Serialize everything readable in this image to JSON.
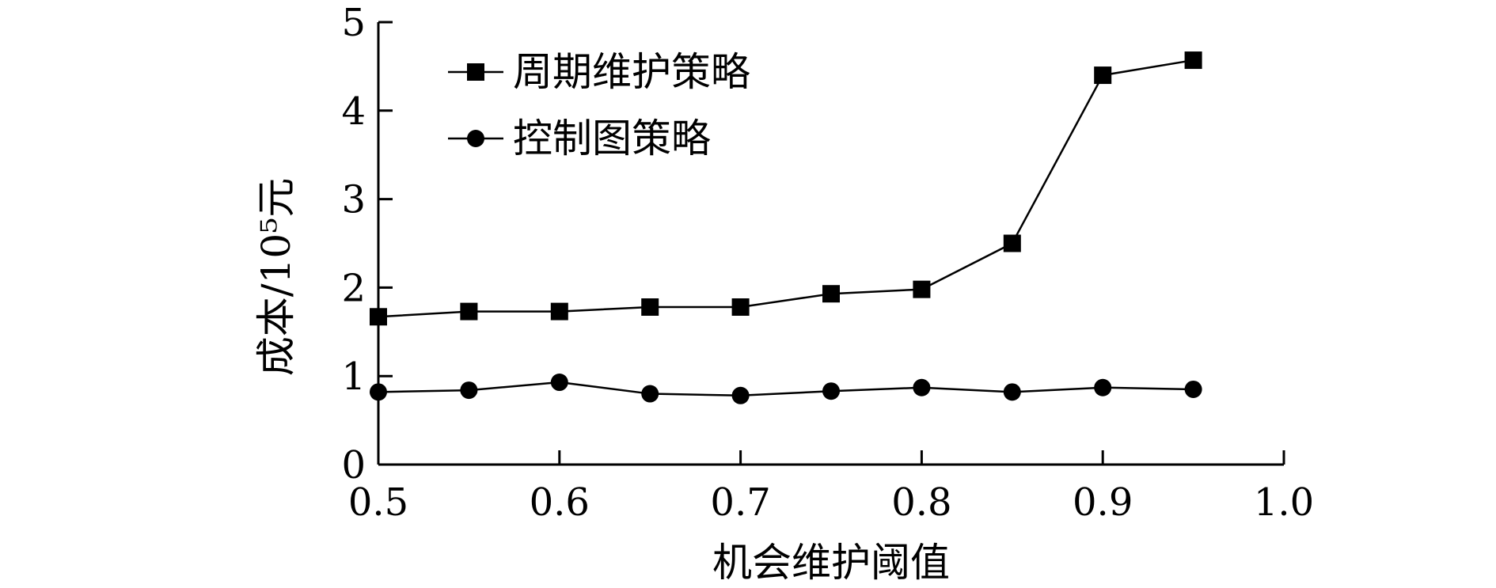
{
  "chart_data": {
    "type": "line",
    "xlabel": "机会维护阈值",
    "ylabel": "成本/10⁵元",
    "xlim": [
      0.5,
      1.0
    ],
    "ylim": [
      0,
      5
    ],
    "xticks": [
      "0.5",
      "0.6",
      "0.7",
      "0.8",
      "0.9",
      "1.0"
    ],
    "yticks": [
      "0",
      "1",
      "2",
      "3",
      "4",
      "5"
    ],
    "grid": false,
    "legend_position": "top-left",
    "x": [
      0.5,
      0.55,
      0.6,
      0.65,
      0.7,
      0.75,
      0.8,
      0.85,
      0.9,
      0.95
    ],
    "series": [
      {
        "name": "周期维护策略",
        "marker": "square",
        "color": "#000000",
        "values": [
          1.67,
          1.73,
          1.73,
          1.78,
          1.78,
          1.93,
          1.98,
          2.5,
          4.4,
          4.57
        ]
      },
      {
        "name": "控制图策略",
        "marker": "circle",
        "color": "#000000",
        "values": [
          0.82,
          0.84,
          0.93,
          0.8,
          0.78,
          0.83,
          0.87,
          0.82,
          0.87,
          0.85
        ]
      }
    ]
  }
}
